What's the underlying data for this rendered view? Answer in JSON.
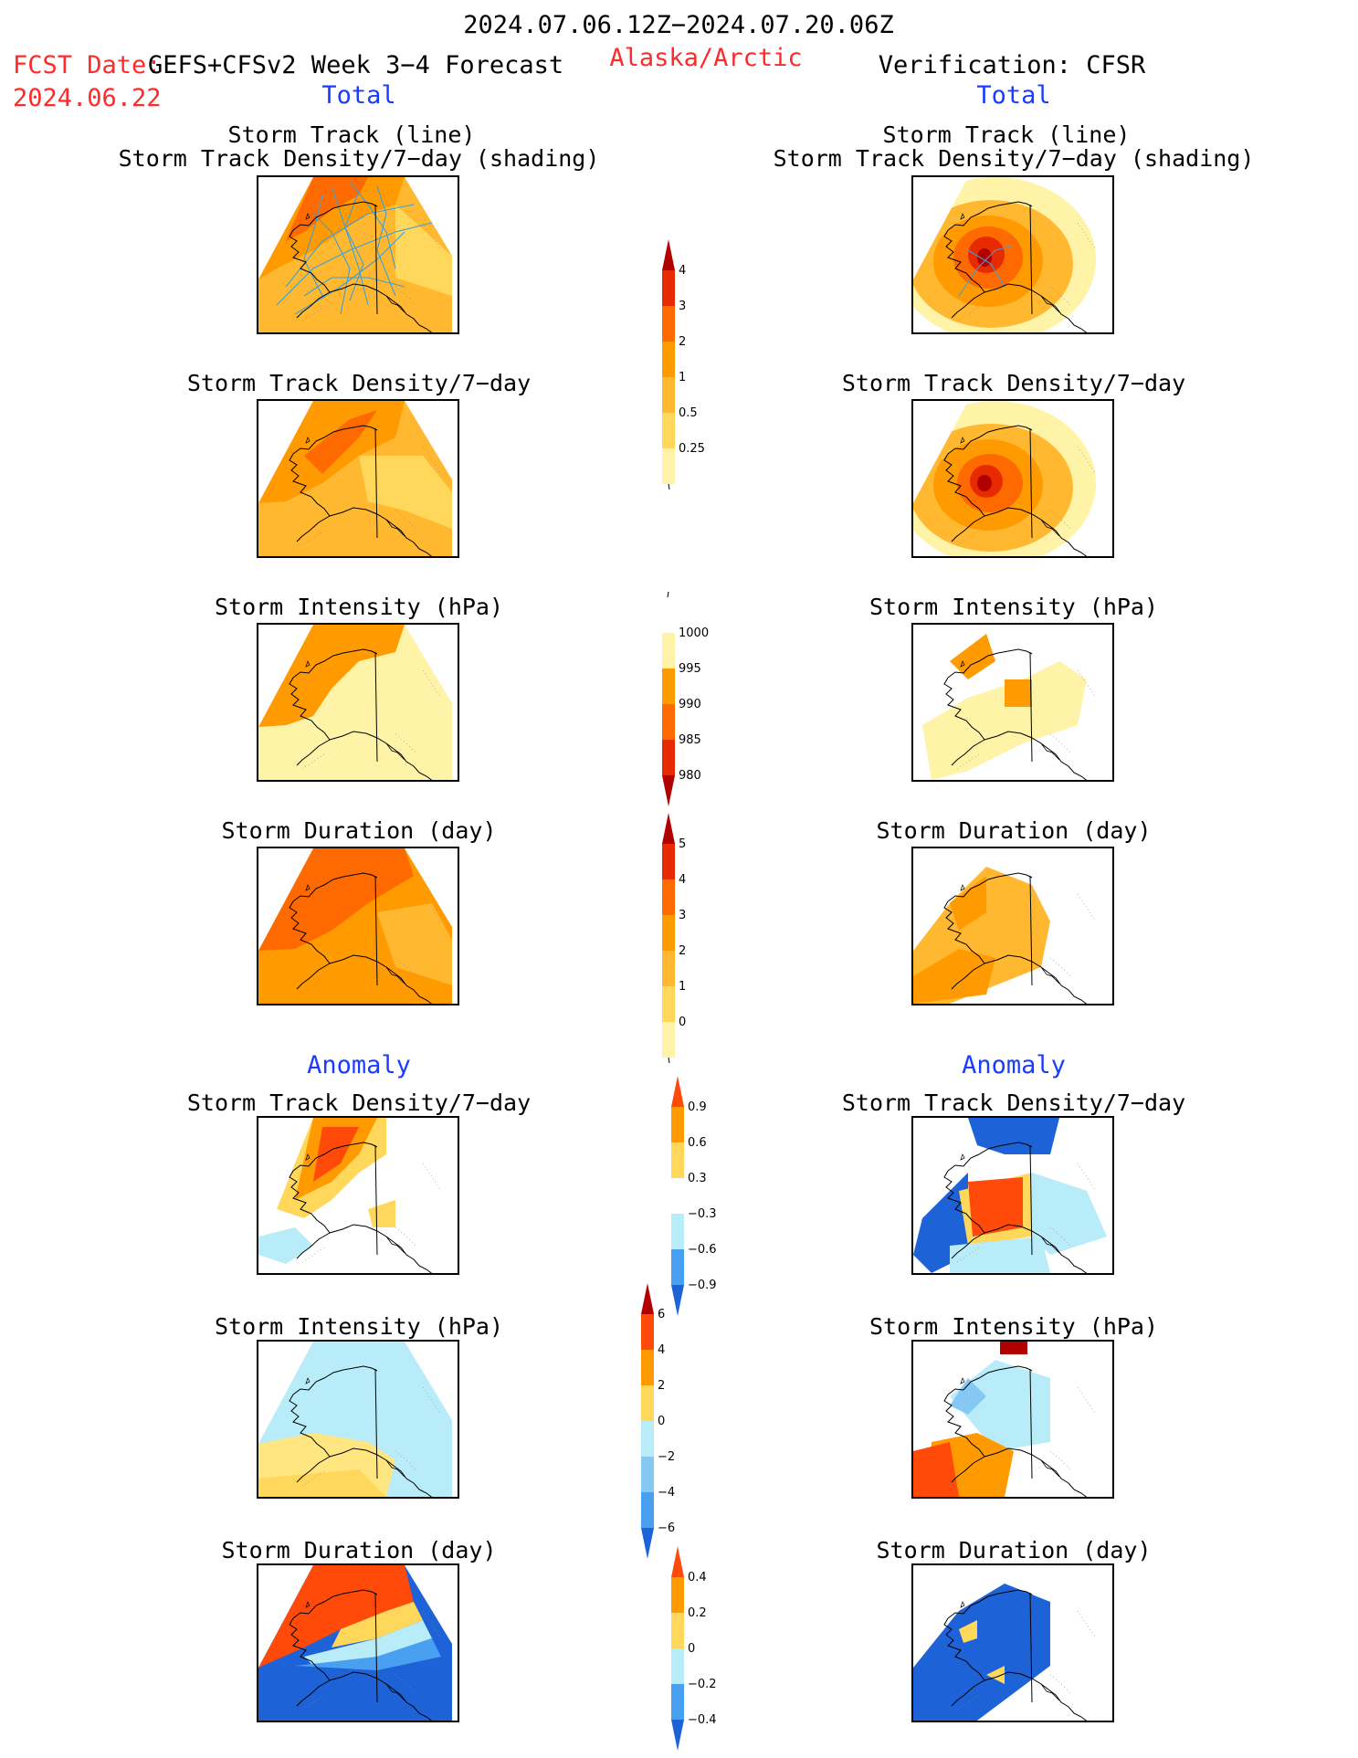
{
  "header": {
    "period": "2024.07.06.12Z−2024.07.20.06Z",
    "fcst_label": "FCST Date:",
    "fcst_model": "GEFS+CFSv2 Week 3−4 Forecast",
    "fcst_date": "2024.06.22",
    "region": "Alaska/Arctic",
    "verification": "Verification: CFSR",
    "left_total": "Total",
    "right_total": "Total",
    "left_anomaly": "Anomaly",
    "right_anomaly": "Anomaly"
  },
  "panel_titles": {
    "track_line": "Storm Track (line)",
    "track_shading": "Storm Track Density/7−day (shading)",
    "density": "Storm Track Density/7−day",
    "intensity": "Storm Intensity (hPa)",
    "duration": "Storm Duration (day)"
  },
  "colors": {
    "c_lightyellow": "#fff3a8",
    "c_yellow": "#ffd75a",
    "c_lightorange": "#ffb830",
    "c_orange": "#ff9a00",
    "c_darkorange": "#ff6a00",
    "c_red": "#e82a00",
    "c_darkred": "#b00000",
    "c_palecyan": "#b8ecf8",
    "c_lightblue": "#86c8f4",
    "c_blue": "#4aa0f0",
    "c_darkblue": "#1e62d8",
    "track_line": "#3aa0d8"
  },
  "colorbars": {
    "density_total": {
      "labels": [
        "4",
        "3",
        "2",
        "1",
        "0.5",
        "0.25"
      ],
      "colors": [
        "#b00000",
        "#e82a00",
        "#ff6a00",
        "#ff9a00",
        "#ffb830",
        "#ffd75a",
        "#fff3a8"
      ]
    },
    "intensity_total": {
      "labels": [
        "1000",
        "995",
        "990",
        "985",
        "980"
      ],
      "colors": [
        "#ffffff",
        "#fff3a8",
        "#ff9a00",
        "#ff6a00",
        "#e82a00",
        "#b00000"
      ]
    },
    "duration_total": {
      "labels": [
        "5",
        "4",
        "3",
        "2",
        "1",
        "0"
      ],
      "colors": [
        "#b00000",
        "#e82a00",
        "#ff6a00",
        "#ff9a00",
        "#ffb830",
        "#ffd75a",
        "#fff3a8"
      ]
    },
    "density_anomaly": {
      "labels": [
        "0.9",
        "0.6",
        "0.3",
        "−0.3",
        "−0.6",
        "−0.9"
      ],
      "colors": [
        "#ff4a0a",
        "#ff9a00",
        "#ffd75a",
        "#ffffff",
        "#b8ecf8",
        "#4aa0f0",
        "#1e62d8"
      ]
    },
    "intensity_anomaly": {
      "labels": [
        "6",
        "4",
        "2",
        "0",
        "−2",
        "−4",
        "−6"
      ],
      "colors": [
        "#b00000",
        "#ff4a0a",
        "#ff9a00",
        "#ffd75a",
        "#b8ecf8",
        "#86c8f4",
        "#4aa0f0",
        "#1e62d8"
      ]
    },
    "duration_anomaly": {
      "labels": [
        "0.4",
        "0.2",
        "0",
        "−0.2",
        "−0.4"
      ],
      "colors": [
        "#ff4a0a",
        "#ff9a00",
        "#ffd75a",
        "#b8ecf8",
        "#4aa0f0",
        "#1e62d8"
      ]
    }
  }
}
